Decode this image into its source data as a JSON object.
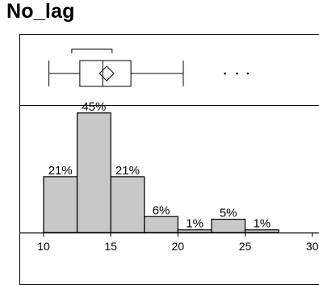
{
  "title": "No_lag",
  "chart_data": {
    "type": "bar",
    "title": "No_lag",
    "xlabel": "",
    "ylabel": "",
    "bins": [
      {
        "start": 10,
        "end": 12.5,
        "pct": 21,
        "label": "21%"
      },
      {
        "start": 12.5,
        "end": 15,
        "pct": 45,
        "label": "45%"
      },
      {
        "start": 15,
        "end": 17.5,
        "pct": 21,
        "label": "21%"
      },
      {
        "start": 17.5,
        "end": 20,
        "pct": 6,
        "label": "6%"
      },
      {
        "start": 20,
        "end": 22.5,
        "pct": 1,
        "label": "1%"
      },
      {
        "start": 22.5,
        "end": 25,
        "pct": 5,
        "label": "5%"
      },
      {
        "start": 25,
        "end": 27.5,
        "pct": 1,
        "label": "1%"
      }
    ],
    "xlim": [
      8.2,
      30.5
    ],
    "ylim": [
      0,
      48
    ],
    "xticks": [
      10,
      15,
      20,
      25,
      30
    ],
    "xtick_labels": [
      "10",
      "15",
      "20",
      "25",
      "30"
    ],
    "boxplot": {
      "whisker_low": 10.4,
      "q1": 12.7,
      "median": 14.4,
      "q3": 16.5,
      "whisker_high": 20.4,
      "mean": 14.7,
      "shortest_half": [
        12.1,
        15.1
      ],
      "outliers": [
        23.5,
        24.4,
        25.2
      ]
    },
    "bar_color": "#c8c8c8",
    "grid": false
  }
}
